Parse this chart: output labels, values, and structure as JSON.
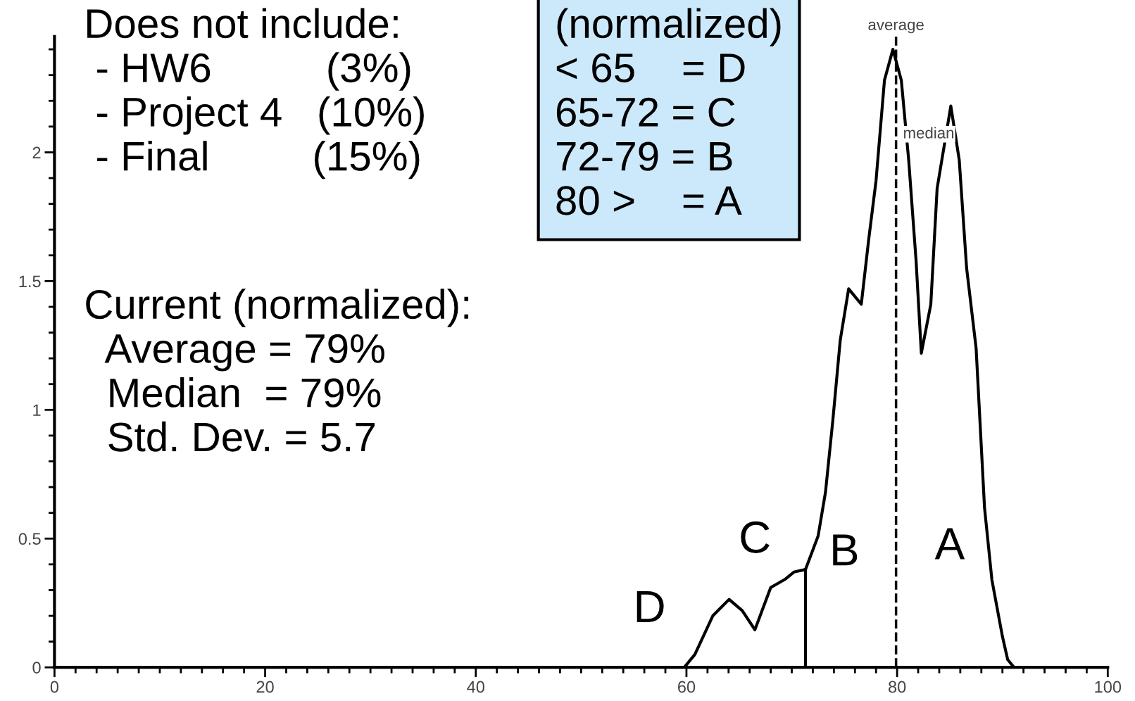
{
  "chart_data": {
    "type": "line",
    "x": [
      0,
      59.8,
      60.8,
      62.5,
      64.05,
      65.3,
      66.5,
      68.0,
      69.4,
      70.2,
      71.3,
      72.5,
      73.2,
      73.9,
      74.6,
      75.4,
      76.0,
      76.6,
      77.3,
      78.0,
      78.8,
      79.6,
      80.4,
      81.1,
      81.8,
      82.3,
      83.2,
      83.8,
      85.1,
      85.9,
      86.6,
      87.5,
      88.3,
      89.0,
      90.0,
      90.5,
      91.1,
      100
    ],
    "series": [
      {
        "color": "#000000",
        "values": [
          0,
          0,
          0.05,
          0.2,
          0.264,
          0.22,
          0.146,
          0.31,
          0.343,
          0.37,
          0.38,
          0.51,
          0.68,
          0.96,
          1.27,
          1.47,
          1.44,
          1.41,
          1.66,
          1.89,
          2.28,
          2.4,
          2.28,
          1.97,
          1.58,
          1.22,
          1.41,
          1.86,
          2.18,
          1.97,
          1.55,
          1.24,
          0.62,
          0.34,
          0.12,
          0.03,
          0,
          0
        ]
      },
      {
        "color": "#000000",
        "x": [
          71.3,
          71.3
        ],
        "values": [
          0,
          0.38
        ]
      }
    ],
    "xlim": [
      0,
      100
    ],
    "ylim": [
      0,
      2.45
    ],
    "xticks": [
      0,
      {
        "value": 2,
        "label": null
      },
      {
        "value": 4,
        "label": null
      },
      {
        "value": 6,
        "label": null
      },
      {
        "value": 8,
        "label": null
      },
      {
        "value": 10,
        "label": null
      },
      {
        "value": 12,
        "label": null
      },
      {
        "value": 14,
        "label": null
      },
      {
        "value": 16,
        "label": null
      },
      {
        "value": 18,
        "label": null
      },
      20,
      {
        "value": 22,
        "label": null
      },
      {
        "value": 24,
        "label": null
      },
      {
        "value": 26,
        "label": null
      },
      {
        "value": 28,
        "label": null
      },
      {
        "value": 30,
        "label": null
      },
      {
        "value": 32,
        "label": null
      },
      {
        "value": 34,
        "label": null
      },
      {
        "value": 36,
        "label": null
      },
      {
        "value": 38,
        "label": null
      },
      40,
      {
        "value": 42,
        "label": null
      },
      {
        "value": 44,
        "label": null
      },
      {
        "value": 46,
        "label": null
      },
      {
        "value": 48,
        "label": null
      },
      {
        "value": 50,
        "label": null
      },
      {
        "value": 52,
        "label": null
      },
      {
        "value": 54,
        "label": null
      },
      {
        "value": 56,
        "label": null
      },
      {
        "value": 58,
        "label": null
      },
      60,
      {
        "value": 62,
        "label": null
      },
      {
        "value": 64,
        "label": null
      },
      {
        "value": 66,
        "label": null
      },
      {
        "value": 68,
        "label": null
      },
      {
        "value": 70,
        "label": null
      },
      {
        "value": 72,
        "label": null
      },
      {
        "value": 74,
        "label": null
      },
      {
        "value": 76,
        "label": null
      },
      {
        "value": 78,
        "label": null
      },
      80,
      {
        "value": 82,
        "label": null
      },
      {
        "value": 84,
        "label": null
      },
      {
        "value": 86,
        "label": null
      },
      {
        "value": 88,
        "label": null
      },
      {
        "value": 90,
        "label": null
      },
      {
        "value": 92,
        "label": null
      },
      {
        "value": 94,
        "label": null
      },
      {
        "value": 96,
        "label": null
      },
      {
        "value": 98,
        "label": null
      },
      100
    ],
    "yticks": [
      0,
      {
        "value": 0.1,
        "label": null
      },
      {
        "value": 0.2,
        "label": null
      },
      {
        "value": 0.3,
        "label": null
      },
      {
        "value": 0.4,
        "label": null
      },
      0.5,
      {
        "value": 0.6,
        "label": null
      },
      {
        "value": 0.7,
        "label": null
      },
      {
        "value": 0.8,
        "label": null
      },
      {
        "value": 0.9,
        "label": null
      },
      1,
      {
        "value": 1.1,
        "label": null
      },
      {
        "value": 1.2,
        "label": null
      },
      {
        "value": 1.3,
        "label": null
      },
      {
        "value": 1.4,
        "label": null
      },
      1.5,
      {
        "value": 1.6,
        "label": null
      },
      {
        "value": 1.7,
        "label": null
      },
      {
        "value": 1.8,
        "label": null
      },
      {
        "value": 1.9,
        "label": null
      },
      2,
      {
        "value": 2.1,
        "label": null
      },
      {
        "value": 2.2,
        "label": null
      },
      {
        "value": 2.3,
        "label": null
      },
      {
        "value": 2.4,
        "label": null
      }
    ],
    "ref_lines": [
      {
        "axis": "x",
        "value": 79.9,
        "label": "average",
        "line_style": "dashed",
        "color": "#000000"
      }
    ],
    "annotations": [
      "Does not include:\n - HW6          (3%)\n - Project 4   (10%)\n - Final         (15%)",
      "Current (normalized):\n  Average = 79%\n  Median  = 79%\n  Std. Dev. = 5.7",
      "(normalized)\n< 65    = D\n65-72 = C\n72-79 = B\n80 >    = A",
      "median",
      "D",
      "C",
      "B",
      "A"
    ],
    "grid": false,
    "legend": false,
    "marker": "none",
    "line_style": "solid"
  }
}
